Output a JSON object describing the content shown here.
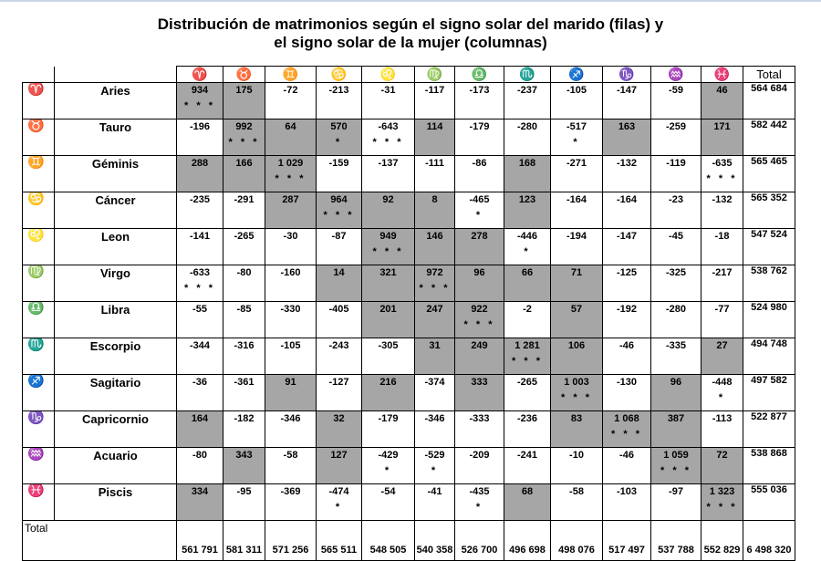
{
  "title": {
    "line1": "Distribución de matrimonios según el signo solar del marido (filas) y",
    "line2": "el signo solar de la mujer (columnas)"
  },
  "column_headers": [
    "♈",
    "♉",
    "♊",
    "♋",
    "♌",
    "♍",
    "♎",
    "♏",
    "♐",
    "♑",
    "♒",
    "♓"
  ],
  "total_header": "Total",
  "rows": [
    {
      "symbol": "♈",
      "name": "Aries",
      "total": "564 684",
      "cells": [
        {
          "v": "934",
          "s": "* * *",
          "shade": true
        },
        {
          "v": "175",
          "s": "",
          "shade": true
        },
        {
          "v": "-72",
          "s": "",
          "shade": false
        },
        {
          "v": "-213",
          "s": "",
          "shade": false
        },
        {
          "v": "-31",
          "s": "",
          "shade": false
        },
        {
          "v": "-117",
          "s": "",
          "shade": false
        },
        {
          "v": "-173",
          "s": "",
          "shade": false
        },
        {
          "v": "-237",
          "s": "",
          "shade": false
        },
        {
          "v": "-105",
          "s": "",
          "shade": false
        },
        {
          "v": "-147",
          "s": "",
          "shade": false
        },
        {
          "v": "-59",
          "s": "",
          "shade": false
        },
        {
          "v": "46",
          "s": "",
          "shade": true
        }
      ]
    },
    {
      "symbol": "♉",
      "name": "Tauro",
      "total": "582 442",
      "cells": [
        {
          "v": "-196",
          "s": "",
          "shade": false
        },
        {
          "v": "992",
          "s": "* * *",
          "shade": true
        },
        {
          "v": "64",
          "s": "",
          "shade": true
        },
        {
          "v": "570",
          "s": "*",
          "shade": true
        },
        {
          "v": "-643",
          "s": "* * *",
          "shade": false
        },
        {
          "v": "114",
          "s": "",
          "shade": true
        },
        {
          "v": "-179",
          "s": "",
          "shade": false
        },
        {
          "v": "-280",
          "s": "",
          "shade": false
        },
        {
          "v": "-517",
          "s": "*",
          "shade": false
        },
        {
          "v": "163",
          "s": "",
          "shade": true
        },
        {
          "v": "-259",
          "s": "",
          "shade": false
        },
        {
          "v": "171",
          "s": "",
          "shade": true
        }
      ]
    },
    {
      "symbol": "♊",
      "name": "Géminis",
      "total": "565 465",
      "cells": [
        {
          "v": "288",
          "s": "",
          "shade": true
        },
        {
          "v": "166",
          "s": "",
          "shade": true
        },
        {
          "v": "1 029",
          "s": "* * *",
          "shade": true
        },
        {
          "v": "-159",
          "s": "",
          "shade": false
        },
        {
          "v": "-137",
          "s": "",
          "shade": false
        },
        {
          "v": "-111",
          "s": "",
          "shade": false
        },
        {
          "v": "-86",
          "s": "",
          "shade": false
        },
        {
          "v": "168",
          "s": "",
          "shade": true
        },
        {
          "v": "-271",
          "s": "",
          "shade": false
        },
        {
          "v": "-132",
          "s": "",
          "shade": false
        },
        {
          "v": "-119",
          "s": "",
          "shade": false
        },
        {
          "v": "-635",
          "s": "* * *",
          "shade": false
        }
      ]
    },
    {
      "symbol": "♋",
      "name": "Cáncer",
      "total": "565 352",
      "cells": [
        {
          "v": "-235",
          "s": "",
          "shade": false
        },
        {
          "v": "-291",
          "s": "",
          "shade": false
        },
        {
          "v": "287",
          "s": "",
          "shade": true
        },
        {
          "v": "964",
          "s": "* * *",
          "shade": true
        },
        {
          "v": "92",
          "s": "",
          "shade": true
        },
        {
          "v": "8",
          "s": "",
          "shade": true
        },
        {
          "v": "-465",
          "s": "*",
          "shade": false
        },
        {
          "v": "123",
          "s": "",
          "shade": true
        },
        {
          "v": "-164",
          "s": "",
          "shade": false
        },
        {
          "v": "-164",
          "s": "",
          "shade": false
        },
        {
          "v": "-23",
          "s": "",
          "shade": false
        },
        {
          "v": "-132",
          "s": "",
          "shade": false
        }
      ]
    },
    {
      "symbol": "♌",
      "name": "Leon",
      "total": "547 524",
      "cells": [
        {
          "v": "-141",
          "s": "",
          "shade": false
        },
        {
          "v": "-265",
          "s": "",
          "shade": false
        },
        {
          "v": "-30",
          "s": "",
          "shade": false
        },
        {
          "v": "-87",
          "s": "",
          "shade": false
        },
        {
          "v": "949",
          "s": "* * *",
          "shade": true
        },
        {
          "v": "146",
          "s": "",
          "shade": true
        },
        {
          "v": "278",
          "s": "",
          "shade": true
        },
        {
          "v": "-446",
          "s": "*",
          "shade": false
        },
        {
          "v": "-194",
          "s": "",
          "shade": false
        },
        {
          "v": "-147",
          "s": "",
          "shade": false
        },
        {
          "v": "-45",
          "s": "",
          "shade": false
        },
        {
          "v": "-18",
          "s": "",
          "shade": false
        }
      ]
    },
    {
      "symbol": "♍",
      "name": "Virgo",
      "total": "538 762",
      "cells": [
        {
          "v": "-633",
          "s": "* * *",
          "shade": false
        },
        {
          "v": "-80",
          "s": "",
          "shade": false
        },
        {
          "v": "-160",
          "s": "",
          "shade": false
        },
        {
          "v": "14",
          "s": "",
          "shade": true
        },
        {
          "v": "321",
          "s": "",
          "shade": true
        },
        {
          "v": "972",
          "s": "* * *",
          "shade": true
        },
        {
          "v": "96",
          "s": "",
          "shade": true
        },
        {
          "v": "66",
          "s": "",
          "shade": true
        },
        {
          "v": "71",
          "s": "",
          "shade": true
        },
        {
          "v": "-125",
          "s": "",
          "shade": false
        },
        {
          "v": "-325",
          "s": "",
          "shade": false
        },
        {
          "v": "-217",
          "s": "",
          "shade": false
        }
      ]
    },
    {
      "symbol": "♎",
      "name": "Libra",
      "total": "524 980",
      "cells": [
        {
          "v": "-55",
          "s": "",
          "shade": false
        },
        {
          "v": "-85",
          "s": "",
          "shade": false
        },
        {
          "v": "-330",
          "s": "",
          "shade": false
        },
        {
          "v": "-405",
          "s": "",
          "shade": false
        },
        {
          "v": "201",
          "s": "",
          "shade": true
        },
        {
          "v": "247",
          "s": "",
          "shade": true
        },
        {
          "v": "922",
          "s": "* * *",
          "shade": true
        },
        {
          "v": "-2",
          "s": "",
          "shade": false
        },
        {
          "v": "57",
          "s": "",
          "shade": true
        },
        {
          "v": "-192",
          "s": "",
          "shade": false
        },
        {
          "v": "-280",
          "s": "",
          "shade": false
        },
        {
          "v": "-77",
          "s": "",
          "shade": false
        }
      ]
    },
    {
      "symbol": "♏",
      "name": "Escorpio",
      "total": "494 748",
      "cells": [
        {
          "v": "-344",
          "s": "",
          "shade": false
        },
        {
          "v": "-316",
          "s": "",
          "shade": false
        },
        {
          "v": "-105",
          "s": "",
          "shade": false
        },
        {
          "v": "-243",
          "s": "",
          "shade": false
        },
        {
          "v": "-305",
          "s": "",
          "shade": false
        },
        {
          "v": "31",
          "s": "",
          "shade": true
        },
        {
          "v": "249",
          "s": "",
          "shade": true
        },
        {
          "v": "1 281",
          "s": "* * *",
          "shade": true
        },
        {
          "v": "106",
          "s": "",
          "shade": true
        },
        {
          "v": "-46",
          "s": "",
          "shade": false
        },
        {
          "v": "-335",
          "s": "",
          "shade": false
        },
        {
          "v": "27",
          "s": "",
          "shade": true
        }
      ]
    },
    {
      "symbol": "♐",
      "name": "Sagitario",
      "total": "497 582",
      "cells": [
        {
          "v": "-36",
          "s": "",
          "shade": false
        },
        {
          "v": "-361",
          "s": "",
          "shade": false
        },
        {
          "v": "91",
          "s": "",
          "shade": true
        },
        {
          "v": "-127",
          "s": "",
          "shade": false
        },
        {
          "v": "216",
          "s": "",
          "shade": true
        },
        {
          "v": "-374",
          "s": "",
          "shade": false
        },
        {
          "v": "333",
          "s": "",
          "shade": true
        },
        {
          "v": "-265",
          "s": "",
          "shade": false
        },
        {
          "v": "1 003",
          "s": "* * *",
          "shade": true
        },
        {
          "v": "-130",
          "s": "",
          "shade": false
        },
        {
          "v": "96",
          "s": "",
          "shade": true
        },
        {
          "v": "-448",
          "s": "*",
          "shade": false
        }
      ]
    },
    {
      "symbol": "♑",
      "name": "Capricornio",
      "total": "522 877",
      "cells": [
        {
          "v": "164",
          "s": "",
          "shade": true
        },
        {
          "v": "-182",
          "s": "",
          "shade": false
        },
        {
          "v": "-346",
          "s": "",
          "shade": false
        },
        {
          "v": "32",
          "s": "",
          "shade": true
        },
        {
          "v": "-179",
          "s": "",
          "shade": false
        },
        {
          "v": "-346",
          "s": "",
          "shade": false
        },
        {
          "v": "-333",
          "s": "",
          "shade": false
        },
        {
          "v": "-236",
          "s": "",
          "shade": false
        },
        {
          "v": "83",
          "s": "",
          "shade": true
        },
        {
          "v": "1 068",
          "s": "* * *",
          "shade": true
        },
        {
          "v": "387",
          "s": "",
          "shade": true
        },
        {
          "v": "-113",
          "s": "",
          "shade": false
        }
      ]
    },
    {
      "symbol": "♒",
      "name": "Acuario",
      "total": "538 868",
      "cells": [
        {
          "v": "-80",
          "s": "",
          "shade": false
        },
        {
          "v": "343",
          "s": "",
          "shade": true
        },
        {
          "v": "-58",
          "s": "",
          "shade": false
        },
        {
          "v": "127",
          "s": "",
          "shade": true
        },
        {
          "v": "-429",
          "s": "*",
          "shade": false
        },
        {
          "v": "-529",
          "s": "*",
          "shade": false
        },
        {
          "v": "-209",
          "s": "",
          "shade": false
        },
        {
          "v": "-241",
          "s": "",
          "shade": false
        },
        {
          "v": "-10",
          "s": "",
          "shade": false
        },
        {
          "v": "-46",
          "s": "",
          "shade": false
        },
        {
          "v": "1 059",
          "s": "* * *",
          "shade": true
        },
        {
          "v": "72",
          "s": "",
          "shade": true
        }
      ]
    },
    {
      "symbol": "♓",
      "name": "Piscis",
      "total": "555 036",
      "cells": [
        {
          "v": "334",
          "s": "",
          "shade": true
        },
        {
          "v": "-95",
          "s": "",
          "shade": false
        },
        {
          "v": "-369",
          "s": "",
          "shade": false
        },
        {
          "v": "-474",
          "s": "*",
          "shade": false
        },
        {
          "v": "-54",
          "s": "",
          "shade": false
        },
        {
          "v": "-41",
          "s": "",
          "shade": false
        },
        {
          "v": "-435",
          "s": "*",
          "shade": false
        },
        {
          "v": "68",
          "s": "",
          "shade": true
        },
        {
          "v": "-58",
          "s": "",
          "shade": false
        },
        {
          "v": "-103",
          "s": "",
          "shade": false
        },
        {
          "v": "-97",
          "s": "",
          "shade": false
        },
        {
          "v": "1 323",
          "s": "* * *",
          "shade": true
        }
      ]
    }
  ],
  "totals_row": {
    "label": "Total",
    "values": [
      "561 791",
      "581 311",
      "571 256",
      "565 511",
      "548 505",
      "540 358",
      "526 700",
      "496 698",
      "498 076",
      "517 497",
      "537 788",
      "552 829"
    ],
    "grand_total": "6 498 320"
  },
  "colors": {
    "shade": "#a6a6a6",
    "border": "#000000",
    "top_rule": "#c9d5e6"
  }
}
